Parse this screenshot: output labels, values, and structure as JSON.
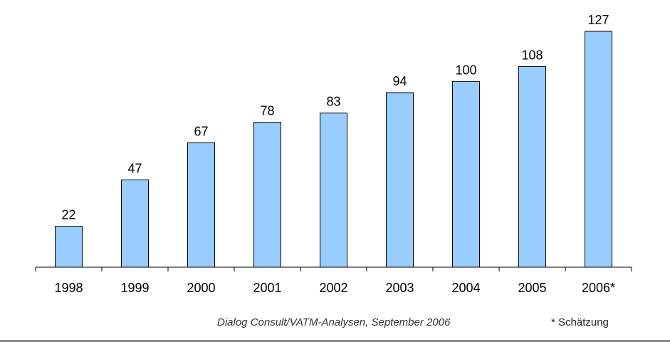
{
  "chart_data": {
    "type": "bar",
    "categories": [
      "1998",
      "1999",
      "2000",
      "2001",
      "2002",
      "2003",
      "2004",
      "2005",
      "2006*"
    ],
    "values": [
      22,
      47,
      67,
      78,
      83,
      94,
      100,
      108,
      127
    ],
    "value_labels": [
      "22",
      "47",
      "67",
      "78",
      "83",
      "94",
      "100",
      "108",
      "127"
    ],
    "title": "",
    "xlabel": "",
    "ylabel": "",
    "ylim": [
      0,
      127
    ],
    "grid": false,
    "legend": "none",
    "bar_color": "#99ccff",
    "bar_edge_color": "#000000"
  },
  "source_note": "Dialog Consult/VATM-Analysen, September 2006",
  "footnote": "* Schätzung"
}
